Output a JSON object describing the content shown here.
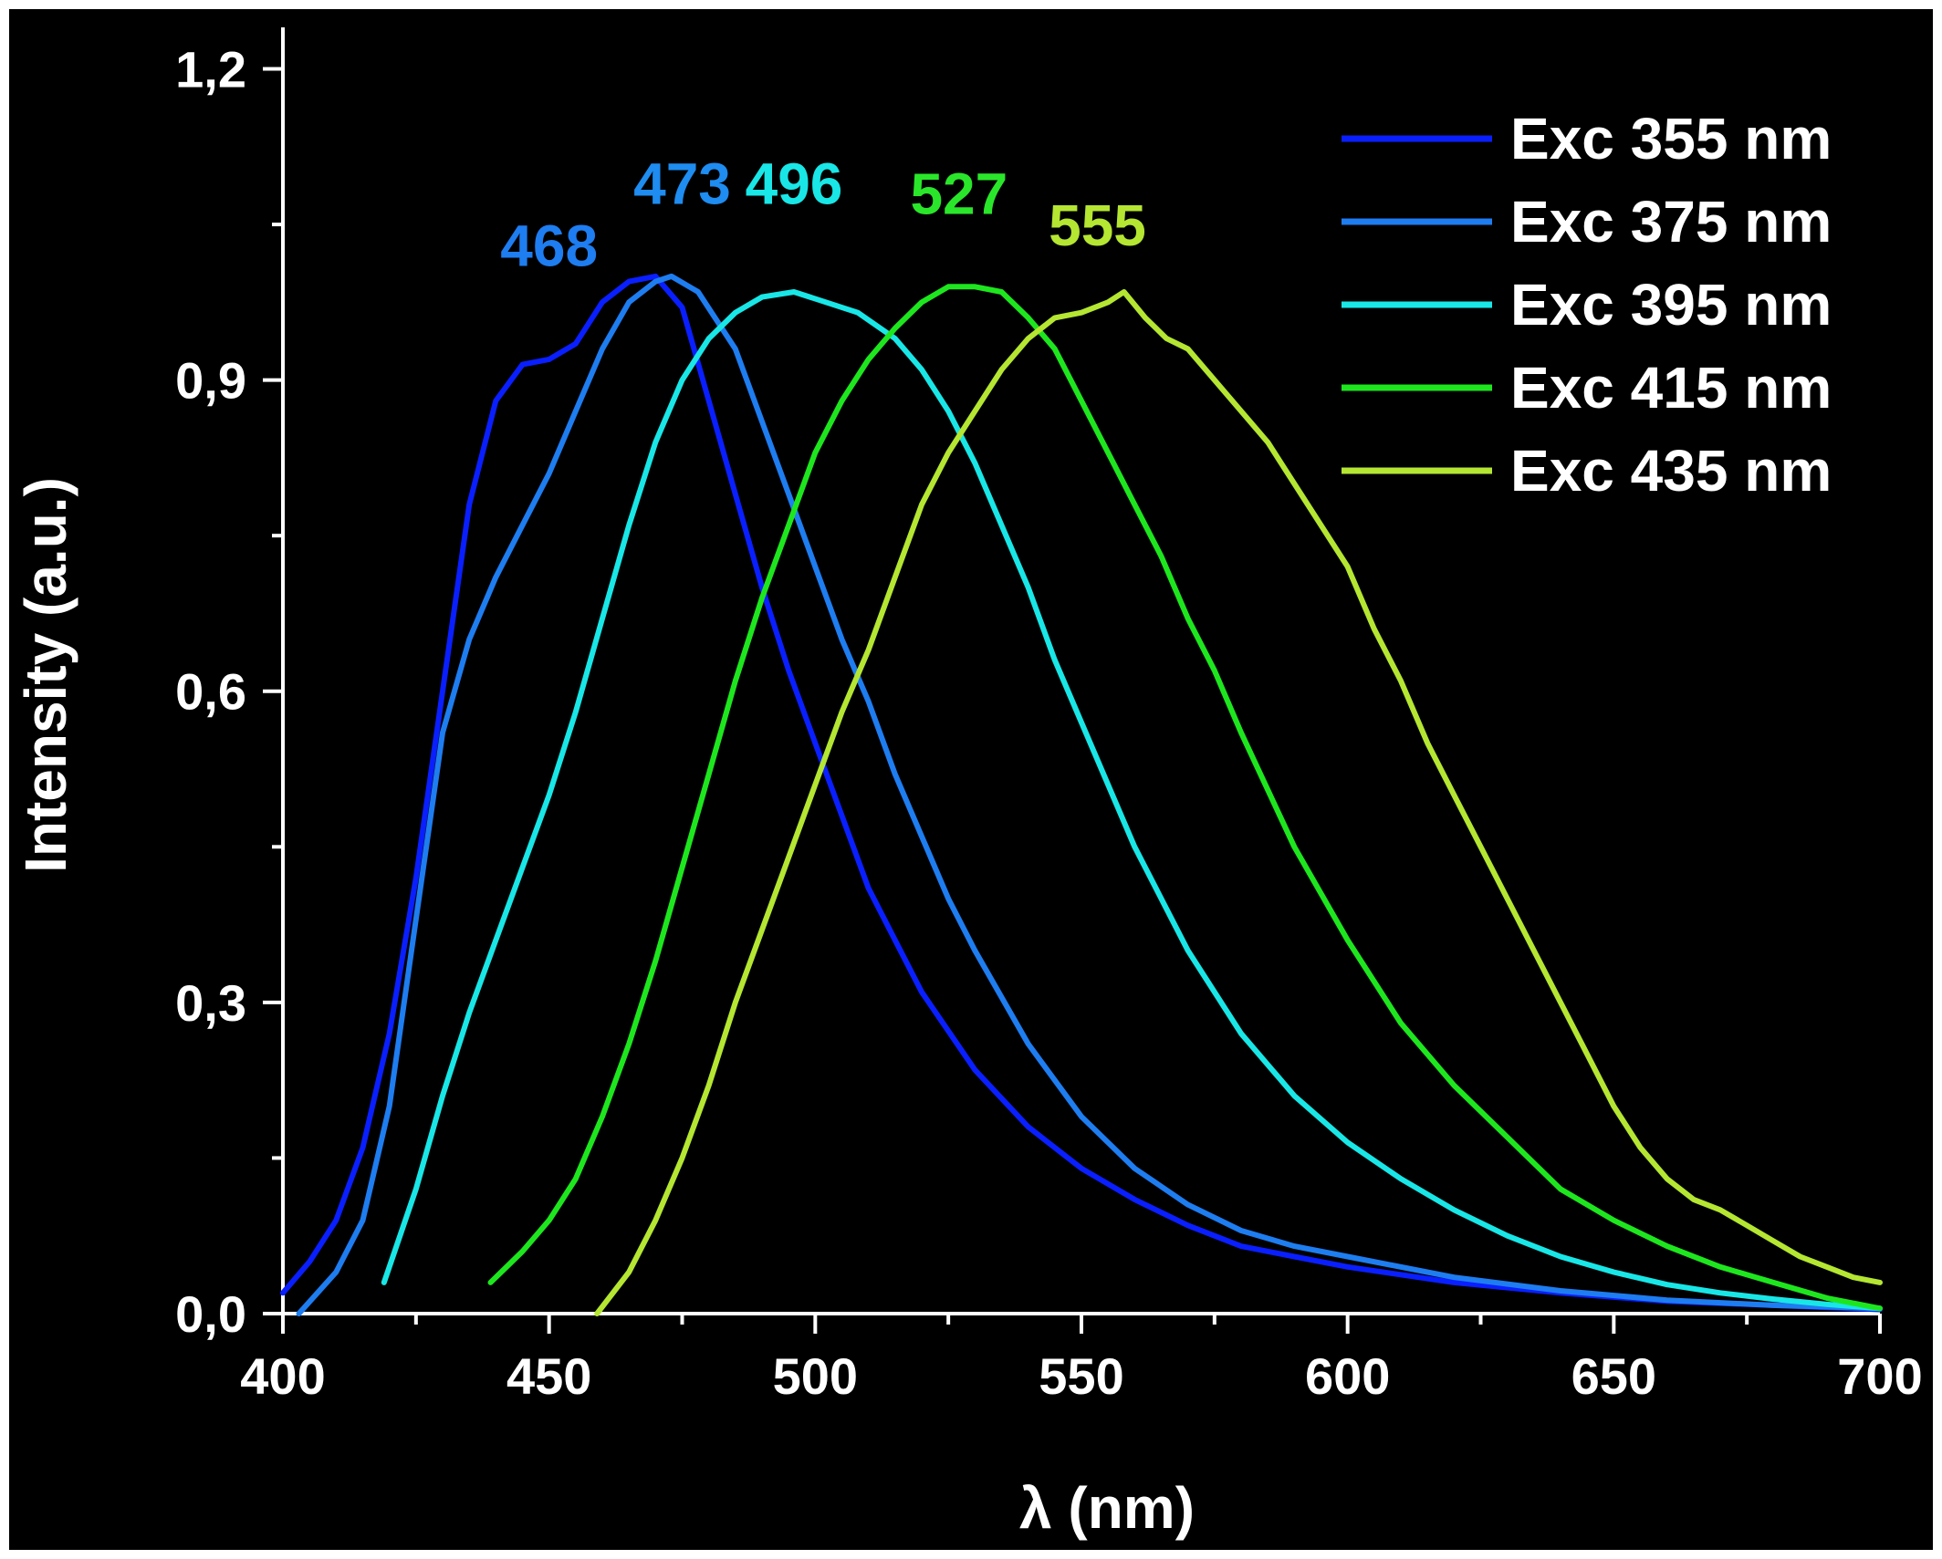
{
  "chart_data": {
    "type": "line",
    "xlabel": "λ (nm)",
    "ylabel": "Intensity (a.u.)",
    "xlim": [
      400,
      700
    ],
    "ylim": [
      0,
      1.24
    ],
    "x_ticks": [
      "400",
      "450",
      "500",
      "550",
      "600",
      "650",
      "700"
    ],
    "y_ticks": [
      "0,0",
      "0,3",
      "0,6",
      "0,9",
      "1,2"
    ],
    "legend_position": "top-right",
    "grid": false,
    "series": [
      {
        "name": "Exc 355 nm",
        "color": "#0a1fff",
        "peak_label": "468",
        "label_color": "#1e7df0",
        "points": [
          [
            400,
            0.02
          ],
          [
            405,
            0.05
          ],
          [
            410,
            0.09
          ],
          [
            415,
            0.16
          ],
          [
            420,
            0.27
          ],
          [
            425,
            0.42
          ],
          [
            430,
            0.6
          ],
          [
            435,
            0.78
          ],
          [
            440,
            0.88
          ],
          [
            445,
            0.915
          ],
          [
            450,
            0.92
          ],
          [
            455,
            0.935
          ],
          [
            460,
            0.975
          ],
          [
            465,
            0.995
          ],
          [
            470,
            1.0
          ],
          [
            475,
            0.97
          ],
          [
            480,
            0.88
          ],
          [
            485,
            0.79
          ],
          [
            490,
            0.7
          ],
          [
            495,
            0.62
          ],
          [
            500,
            0.55
          ],
          [
            505,
            0.48
          ],
          [
            510,
            0.41
          ],
          [
            515,
            0.36
          ],
          [
            520,
            0.31
          ],
          [
            530,
            0.235
          ],
          [
            540,
            0.18
          ],
          [
            550,
            0.14
          ],
          [
            560,
            0.11
          ],
          [
            570,
            0.085
          ],
          [
            580,
            0.065
          ],
          [
            590,
            0.055
          ],
          [
            600,
            0.045
          ],
          [
            620,
            0.03
          ],
          [
            640,
            0.02
          ],
          [
            660,
            0.012
          ],
          [
            680,
            0.008
          ],
          [
            700,
            0.004
          ]
        ]
      },
      {
        "name": "Exc 375 nm",
        "color": "#1e7df0",
        "peak_label": "473",
        "label_color": "#1e8cf0",
        "points": [
          [
            403,
            0.0
          ],
          [
            410,
            0.04
          ],
          [
            415,
            0.09
          ],
          [
            420,
            0.2
          ],
          [
            425,
            0.38
          ],
          [
            430,
            0.56
          ],
          [
            435,
            0.65
          ],
          [
            440,
            0.71
          ],
          [
            445,
            0.76
          ],
          [
            450,
            0.81
          ],
          [
            455,
            0.87
          ],
          [
            460,
            0.93
          ],
          [
            465,
            0.975
          ],
          [
            470,
            0.995
          ],
          [
            473,
            1.0
          ],
          [
            478,
            0.985
          ],
          [
            485,
            0.93
          ],
          [
            490,
            0.86
          ],
          [
            495,
            0.79
          ],
          [
            500,
            0.72
          ],
          [
            505,
            0.65
          ],
          [
            510,
            0.59
          ],
          [
            515,
            0.52
          ],
          [
            520,
            0.46
          ],
          [
            525,
            0.4
          ],
          [
            530,
            0.35
          ],
          [
            540,
            0.26
          ],
          [
            550,
            0.19
          ],
          [
            560,
            0.14
          ],
          [
            570,
            0.105
          ],
          [
            580,
            0.08
          ],
          [
            590,
            0.065
          ],
          [
            600,
            0.055
          ],
          [
            620,
            0.035
          ],
          [
            640,
            0.022
          ],
          [
            660,
            0.013
          ],
          [
            680,
            0.008
          ],
          [
            700,
            0.005
          ]
        ]
      },
      {
        "name": "Exc 395 nm",
        "color": "#19e6e6",
        "peak_label": "496",
        "label_color": "#19e6e6",
        "points": [
          [
            419,
            0.03
          ],
          [
            425,
            0.12
          ],
          [
            430,
            0.21
          ],
          [
            435,
            0.29
          ],
          [
            440,
            0.36
          ],
          [
            445,
            0.43
          ],
          [
            450,
            0.5
          ],
          [
            455,
            0.58
          ],
          [
            460,
            0.67
          ],
          [
            465,
            0.76
          ],
          [
            470,
            0.84
          ],
          [
            475,
            0.9
          ],
          [
            480,
            0.94
          ],
          [
            485,
            0.965
          ],
          [
            490,
            0.98
          ],
          [
            496,
            0.985
          ],
          [
            502,
            0.975
          ],
          [
            508,
            0.965
          ],
          [
            515,
            0.94
          ],
          [
            520,
            0.91
          ],
          [
            525,
            0.87
          ],
          [
            530,
            0.82
          ],
          [
            535,
            0.76
          ],
          [
            540,
            0.7
          ],
          [
            545,
            0.63
          ],
          [
            550,
            0.57
          ],
          [
            560,
            0.45
          ],
          [
            570,
            0.35
          ],
          [
            580,
            0.27
          ],
          [
            590,
            0.21
          ],
          [
            600,
            0.165
          ],
          [
            610,
            0.13
          ],
          [
            620,
            0.1
          ],
          [
            630,
            0.075
          ],
          [
            640,
            0.055
          ],
          [
            650,
            0.04
          ],
          [
            660,
            0.028
          ],
          [
            670,
            0.02
          ],
          [
            680,
            0.014
          ],
          [
            690,
            0.009
          ],
          [
            700,
            0.005
          ]
        ]
      },
      {
        "name": "Exc 415 nm",
        "color": "#1ee61e",
        "peak_label": "527",
        "label_color": "#2ae62a",
        "points": [
          [
            439,
            0.03
          ],
          [
            445,
            0.06
          ],
          [
            450,
            0.09
          ],
          [
            455,
            0.13
          ],
          [
            460,
            0.19
          ],
          [
            465,
            0.26
          ],
          [
            470,
            0.34
          ],
          [
            475,
            0.43
          ],
          [
            480,
            0.52
          ],
          [
            485,
            0.61
          ],
          [
            490,
            0.69
          ],
          [
            495,
            0.76
          ],
          [
            500,
            0.83
          ],
          [
            505,
            0.88
          ],
          [
            510,
            0.92
          ],
          [
            515,
            0.95
          ],
          [
            520,
            0.975
          ],
          [
            525,
            0.99
          ],
          [
            530,
            0.99
          ],
          [
            535,
            0.985
          ],
          [
            540,
            0.96
          ],
          [
            545,
            0.93
          ],
          [
            550,
            0.88
          ],
          [
            555,
            0.83
          ],
          [
            560,
            0.78
          ],
          [
            565,
            0.73
          ],
          [
            570,
            0.67
          ],
          [
            575,
            0.62
          ],
          [
            580,
            0.56
          ],
          [
            590,
            0.45
          ],
          [
            600,
            0.36
          ],
          [
            610,
            0.28
          ],
          [
            620,
            0.22
          ],
          [
            630,
            0.17
          ],
          [
            640,
            0.12
          ],
          [
            650,
            0.09
          ],
          [
            660,
            0.065
          ],
          [
            670,
            0.045
          ],
          [
            680,
            0.03
          ],
          [
            690,
            0.015
          ],
          [
            700,
            0.005
          ]
        ]
      },
      {
        "name": "Exc 435 nm",
        "color": "#b4e632",
        "peak_label": "555",
        "label_color": "#b4e632",
        "points": [
          [
            459,
            0.0
          ],
          [
            465,
            0.04
          ],
          [
            470,
            0.09
          ],
          [
            475,
            0.15
          ],
          [
            480,
            0.22
          ],
          [
            485,
            0.3
          ],
          [
            490,
            0.37
          ],
          [
            495,
            0.44
          ],
          [
            500,
            0.51
          ],
          [
            505,
            0.58
          ],
          [
            510,
            0.64
          ],
          [
            515,
            0.71
          ],
          [
            520,
            0.78
          ],
          [
            525,
            0.83
          ],
          [
            530,
            0.87
          ],
          [
            535,
            0.91
          ],
          [
            540,
            0.94
          ],
          [
            545,
            0.96
          ],
          [
            550,
            0.965
          ],
          [
            555,
            0.975
          ],
          [
            558,
            0.985
          ],
          [
            562,
            0.96
          ],
          [
            566,
            0.94
          ],
          [
            570,
            0.93
          ],
          [
            575,
            0.9
          ],
          [
            580,
            0.87
          ],
          [
            585,
            0.84
          ],
          [
            590,
            0.8
          ],
          [
            595,
            0.76
          ],
          [
            600,
            0.72
          ],
          [
            605,
            0.66
          ],
          [
            610,
            0.61
          ],
          [
            615,
            0.55
          ],
          [
            620,
            0.5
          ],
          [
            625,
            0.45
          ],
          [
            630,
            0.4
          ],
          [
            635,
            0.35
          ],
          [
            640,
            0.3
          ],
          [
            645,
            0.25
          ],
          [
            650,
            0.2
          ],
          [
            655,
            0.16
          ],
          [
            660,
            0.13
          ],
          [
            665,
            0.11
          ],
          [
            670,
            0.1
          ],
          [
            675,
            0.085
          ],
          [
            680,
            0.07
          ],
          [
            685,
            0.055
          ],
          [
            690,
            0.045
          ],
          [
            695,
            0.035
          ],
          [
            700,
            0.03
          ]
        ]
      }
    ],
    "peak_annotations": [
      {
        "text": "468",
        "x": 450,
        "y": 1.01,
        "color": "#1e7df0"
      },
      {
        "text": "473",
        "x": 475,
        "y": 1.07,
        "color": "#1e8cf0"
      },
      {
        "text": "496",
        "x": 496,
        "y": 1.07,
        "color": "#19e6e6"
      },
      {
        "text": "527",
        "x": 527,
        "y": 1.06,
        "color": "#2ae62a"
      },
      {
        "text": "555",
        "x": 553,
        "y": 1.03,
        "color": "#b4e632"
      }
    ]
  }
}
